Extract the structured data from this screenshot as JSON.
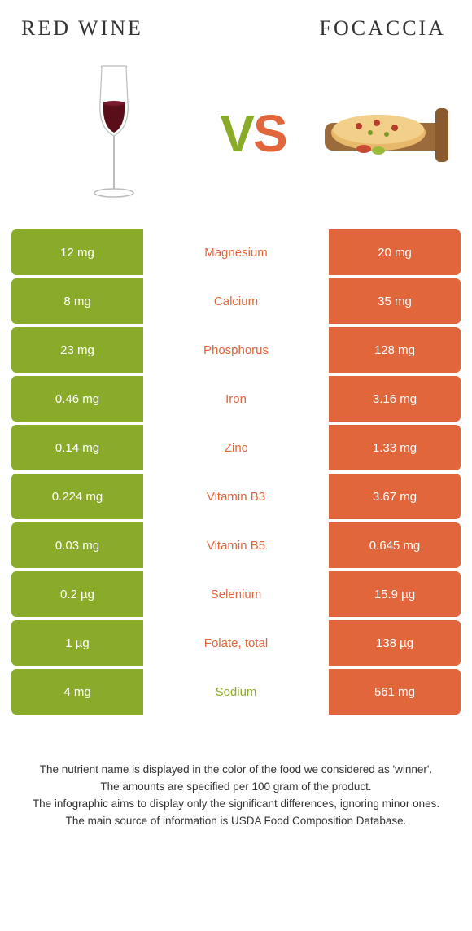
{
  "colors": {
    "green": "#8aab2a",
    "orange": "#e2663c",
    "text": "#333333",
    "white": "#ffffff"
  },
  "title_left": "RED WINE",
  "title_right": "FOCACCIA",
  "vs_v": "V",
  "vs_s": "S",
  "rows": [
    {
      "left": "12 mg",
      "label": "Magnesium",
      "right": "20 mg",
      "winner": "orange"
    },
    {
      "left": "8 mg",
      "label": "Calcium",
      "right": "35 mg",
      "winner": "orange"
    },
    {
      "left": "23 mg",
      "label": "Phosphorus",
      "right": "128 mg",
      "winner": "orange"
    },
    {
      "left": "0.46 mg",
      "label": "Iron",
      "right": "3.16 mg",
      "winner": "orange"
    },
    {
      "left": "0.14 mg",
      "label": "Zinc",
      "right": "1.33 mg",
      "winner": "orange"
    },
    {
      "left": "0.224 mg",
      "label": "Vitamin B3",
      "right": "3.67 mg",
      "winner": "orange"
    },
    {
      "left": "0.03 mg",
      "label": "Vitamin B5",
      "right": "0.645 mg",
      "winner": "orange"
    },
    {
      "left": "0.2 µg",
      "label": "Selenium",
      "right": "15.9 µg",
      "winner": "orange"
    },
    {
      "left": "1 µg",
      "label": "Folate, total",
      "right": "138 µg",
      "winner": "orange"
    },
    {
      "left": "4 mg",
      "label": "Sodium",
      "right": "561 mg",
      "winner": "green"
    }
  ],
  "footer": [
    "The nutrient name is displayed in the color of the food we considered as 'winner'.",
    "The amounts are specified per 100 gram of the product.",
    "The infographic aims to display only the significant differences, ignoring minor ones.",
    "The main source of information is USDA Food Composition Database."
  ]
}
